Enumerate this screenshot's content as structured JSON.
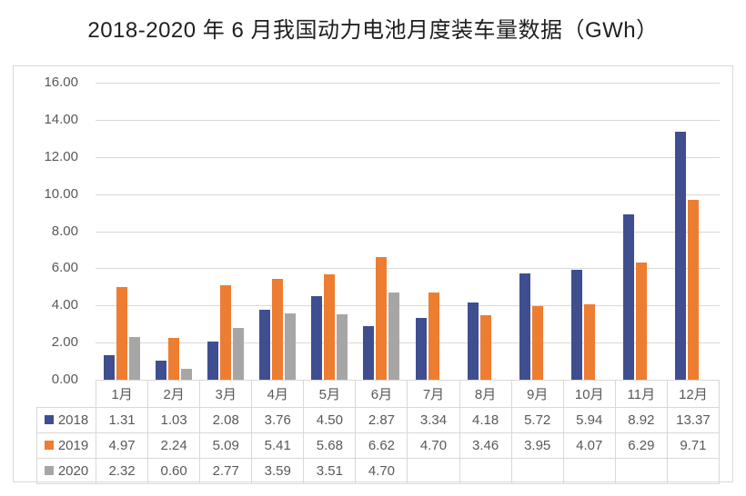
{
  "chart_data": {
    "type": "bar",
    "title": "2018-2020 年 6 月我国动力电池月度装车量数据（GWh）",
    "xlabel": "",
    "ylabel": "",
    "categories": [
      "1月",
      "2月",
      "3月",
      "4月",
      "5月",
      "6月",
      "7月",
      "8月",
      "9月",
      "10月",
      "11月",
      "12月"
    ],
    "series": [
      {
        "name": "2018",
        "color": "#3F4E8F",
        "values": [
          1.31,
          1.03,
          2.08,
          3.76,
          4.5,
          2.87,
          3.34,
          4.18,
          5.72,
          5.94,
          8.92,
          13.37
        ]
      },
      {
        "name": "2019",
        "color": "#ED7D31",
        "values": [
          4.97,
          2.24,
          5.09,
          5.41,
          5.68,
          6.62,
          4.7,
          3.46,
          3.95,
          4.07,
          6.29,
          9.71
        ]
      },
      {
        "name": "2020",
        "color": "#A6A6A6",
        "values": [
          2.32,
          0.6,
          2.77,
          3.59,
          3.51,
          4.7,
          null,
          null,
          null,
          null,
          null,
          null
        ]
      }
    ],
    "ylim": [
      0,
      16
    ],
    "ytick_step": 2,
    "ytick_labels": [
      "16.00",
      "14.00",
      "12.00",
      "10.00",
      "8.00",
      "6.00",
      "4.00",
      "2.00",
      "0.00"
    ],
    "value_decimals": 2,
    "grid": true,
    "legend_position": "data-table-left",
    "data_table_shown": true
  },
  "colors": {
    "grid": "#D9D9D9",
    "axis_text": "#595959",
    "table_border": "#D9D9D9",
    "title_text": "#1F1F1F",
    "background": "#FFFFFF"
  }
}
